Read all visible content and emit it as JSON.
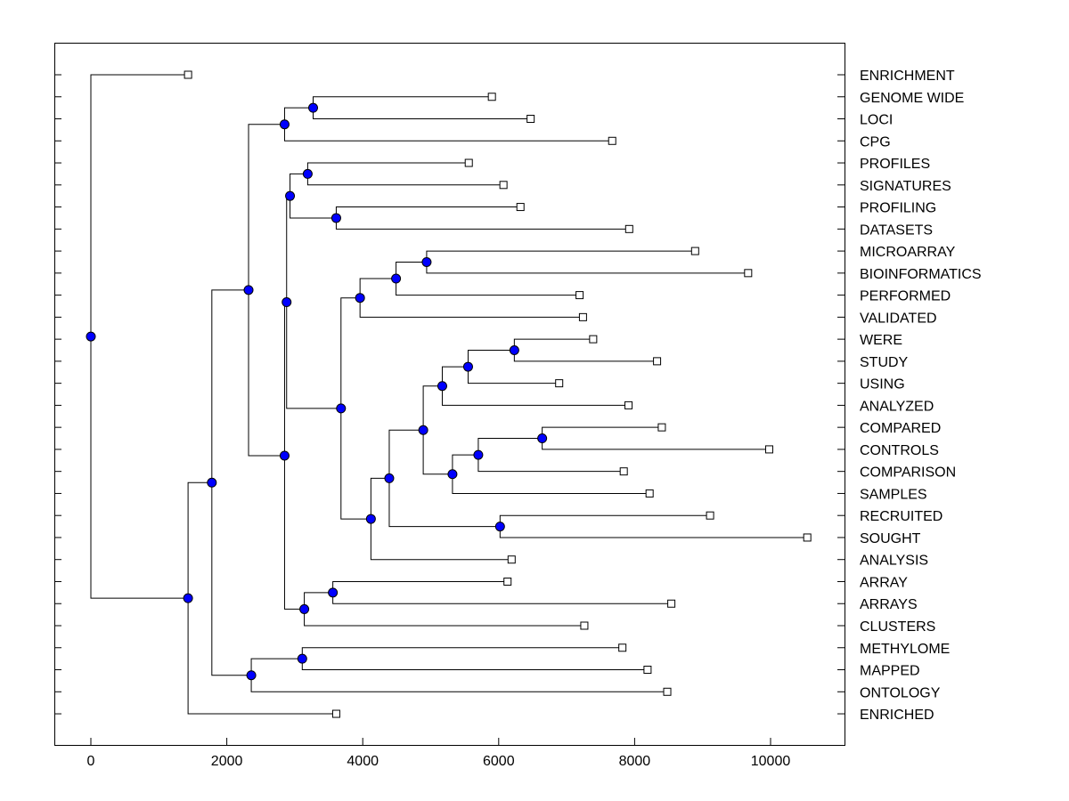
{
  "chart_data": {
    "type": "dendrogram",
    "title": "",
    "xlabel": "",
    "ylabel": "",
    "xlim": [
      -550,
      11250
    ],
    "xticks": [
      0,
      2000,
      4000,
      6000,
      8000,
      10000
    ],
    "colors": {
      "node": "#0000ff",
      "line": "#000000",
      "leaf": "#ffffff"
    },
    "leaves": [
      {
        "label": "ENRICHMENT",
        "x": 1430
      },
      {
        "label": "GENOME WIDE",
        "x": 5900
      },
      {
        "label": "LOCI",
        "x": 6470
      },
      {
        "label": "CPG",
        "x": 7670
      },
      {
        "label": "PROFILES",
        "x": 5560
      },
      {
        "label": "SIGNATURES",
        "x": 6070
      },
      {
        "label": "PROFILING",
        "x": 6320
      },
      {
        "label": "DATASETS",
        "x": 7920
      },
      {
        "label": "MICROARRAY",
        "x": 8890
      },
      {
        "label": "BIOINFORMATICS",
        "x": 9670
      },
      {
        "label": "PERFORMED",
        "x": 7190
      },
      {
        "label": "VALIDATED",
        "x": 7240
      },
      {
        "label": "WERE",
        "x": 7390
      },
      {
        "label": "STUDY",
        "x": 8330
      },
      {
        "label": "USING",
        "x": 6890
      },
      {
        "label": "ANALYZED",
        "x": 7910
      },
      {
        "label": "COMPARED",
        "x": 8400
      },
      {
        "label": "CONTROLS",
        "x": 9980
      },
      {
        "label": "COMPARISON",
        "x": 7840
      },
      {
        "label": "SAMPLES",
        "x": 8220
      },
      {
        "label": "RECRUITED",
        "x": 9110
      },
      {
        "label": "SOUGHT",
        "x": 10540
      },
      {
        "label": "ANALYSIS",
        "x": 6190
      },
      {
        "label": "ARRAY",
        "x": 6130
      },
      {
        "label": "ARRAYS",
        "x": 8540
      },
      {
        "label": "CLUSTERS",
        "x": 7260
      },
      {
        "label": "METHYLOME",
        "x": 7820
      },
      {
        "label": "MAPPED",
        "x": 8190
      },
      {
        "label": "ONTOLOGY",
        "x": 8480
      },
      {
        "label": "ENRICHED",
        "x": 3610
      }
    ],
    "merges": [
      {
        "id": "n1",
        "x": 3270,
        "children": [
          "GENOME WIDE",
          "LOCI"
        ]
      },
      {
        "id": "n2",
        "x": 2850,
        "children": [
          "n1",
          "CPG"
        ]
      },
      {
        "id": "n3",
        "x": 3190,
        "children": [
          "PROFILES",
          "SIGNATURES"
        ]
      },
      {
        "id": "n4",
        "x": 3610,
        "children": [
          "PROFILING",
          "DATASETS"
        ]
      },
      {
        "id": "n5",
        "x": 2930,
        "children": [
          "n3",
          "n4"
        ]
      },
      {
        "id": "n6",
        "x": 4940,
        "children": [
          "MICROARRAY",
          "BIOINFORMATICS"
        ]
      },
      {
        "id": "n7",
        "x": 4490,
        "children": [
          "n6",
          "PERFORMED"
        ]
      },
      {
        "id": "n8",
        "x": 3960,
        "children": [
          "n7",
          "VALIDATED"
        ]
      },
      {
        "id": "n9",
        "x": 6230,
        "children": [
          "WERE",
          "STUDY"
        ]
      },
      {
        "id": "n10",
        "x": 5550,
        "children": [
          "n9",
          "USING"
        ]
      },
      {
        "id": "n11",
        "x": 5170,
        "children": [
          "n10",
          "ANALYZED"
        ]
      },
      {
        "id": "n12",
        "x": 6640,
        "children": [
          "COMPARED",
          "CONTROLS"
        ]
      },
      {
        "id": "n13",
        "x": 5700,
        "children": [
          "n12",
          "COMPARISON"
        ]
      },
      {
        "id": "n14",
        "x": 5320,
        "children": [
          "n13",
          "SAMPLES"
        ]
      },
      {
        "id": "n15",
        "x": 4890,
        "children": [
          "n11",
          "n14"
        ]
      },
      {
        "id": "n16",
        "x": 6020,
        "children": [
          "RECRUITED",
          "SOUGHT"
        ]
      },
      {
        "id": "n17",
        "x": 4390,
        "children": [
          "n15",
          "n16"
        ]
      },
      {
        "id": "n18",
        "x": 4120,
        "children": [
          "n17",
          "ANALYSIS"
        ]
      },
      {
        "id": "n19",
        "x": 3680,
        "children": [
          "n8",
          "n18"
        ]
      },
      {
        "id": "n20",
        "x": 2880,
        "children": [
          "n5",
          "n19"
        ]
      },
      {
        "id": "n21",
        "x": 3560,
        "children": [
          "ARRAY",
          "ARRAYS"
        ]
      },
      {
        "id": "n22",
        "x": 3140,
        "children": [
          "n21",
          "CLUSTERS"
        ]
      },
      {
        "id": "n23",
        "x": 2850,
        "children": [
          "n20",
          "n22"
        ]
      },
      {
        "id": "n24",
        "x": 2320,
        "children": [
          "n2",
          "n23"
        ]
      },
      {
        "id": "n25",
        "x": 3110,
        "children": [
          "METHYLOME",
          "MAPPED"
        ]
      },
      {
        "id": "n26",
        "x": 2360,
        "children": [
          "n25",
          "ONTOLOGY"
        ]
      },
      {
        "id": "n27",
        "x": 1780,
        "children": [
          "n24",
          "n26"
        ]
      },
      {
        "id": "n28",
        "x": 1430,
        "children": [
          "n27",
          "ENRICHED"
        ]
      },
      {
        "id": "root",
        "x": 0,
        "children": [
          "ENRICHMENT",
          "n28"
        ]
      }
    ]
  }
}
